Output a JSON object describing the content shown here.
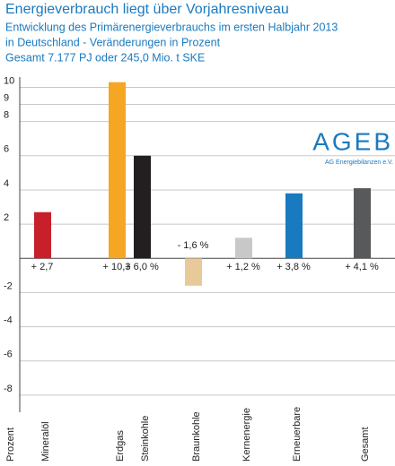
{
  "chart_data": {
    "type": "bar",
    "title": "Energieverbrauch liegt über Vorjahresniveau",
    "subtitle": [
      "Entwicklung des Primärenergieverbrauchs im ersten Halbjahr 2013",
      "in Deutschland - Veränderungen in Prozent",
      "Gesamt 7.177 PJ oder 245,0 Mio. t SKE"
    ],
    "logo": {
      "name": "AGEB",
      "caption": "AG Energiebilanzen e.V."
    },
    "y_label": "Prozent",
    "categories": [
      "Mineralöl",
      "Erdgas",
      "Steinkohle",
      "Braunkohle",
      "Kernenergie",
      "Erneuerbare",
      "Gesamt"
    ],
    "values": [
      2.7,
      10.3,
      6.0,
      -1.6,
      1.2,
      3.8,
      4.1
    ],
    "value_labels": [
      "+ 2,7",
      "+ 10,3",
      "+ 6,0 %",
      "- 1,6 %",
      "+ 1,2 %",
      "+ 3,8 %",
      "+ 4,1 %"
    ],
    "colors": [
      "#c8202a",
      "#f5a623",
      "#231f20",
      "#e8c99a",
      "#c8c8c8",
      "#1a7abf",
      "#58595b"
    ],
    "ylim": [
      -9,
      10.6
    ],
    "yticks": [
      10,
      9,
      8,
      6,
      4,
      2,
      -2,
      -4,
      -6,
      -8
    ],
    "grid": true
  }
}
